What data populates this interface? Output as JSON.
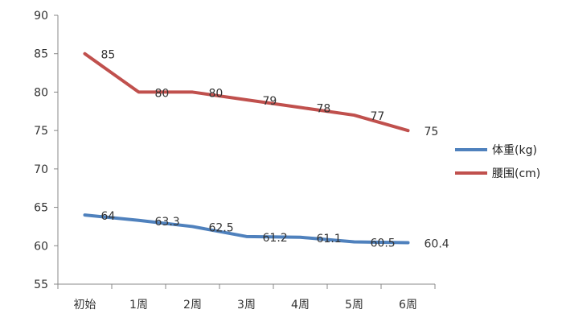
{
  "chart_data": {
    "type": "line",
    "categories": [
      "初始",
      "1周",
      "2周",
      "3周",
      "4周",
      "5周",
      "6周"
    ],
    "series": [
      {
        "name": "体重(kg)",
        "color": "#4f81bd",
        "values": [
          64,
          63.3,
          62.5,
          61.2,
          61.1,
          60.5,
          60.4
        ]
      },
      {
        "name": "腰围(cm)",
        "color": "#c0504d",
        "values": [
          85,
          80,
          80,
          79,
          78,
          77,
          75
        ]
      }
    ],
    "data_labels": [
      [
        "64",
        "63.3",
        "62.5",
        "61.2",
        "61.1",
        "60.5",
        "60.4"
      ],
      [
        "85",
        "80",
        "80",
        "79",
        "78",
        "77",
        "75"
      ]
    ],
    "ylim": [
      55,
      90
    ],
    "yticks": [
      "55",
      "60",
      "65",
      "70",
      "75",
      "80",
      "85",
      "90"
    ],
    "legend_position": "right",
    "grid": false
  }
}
